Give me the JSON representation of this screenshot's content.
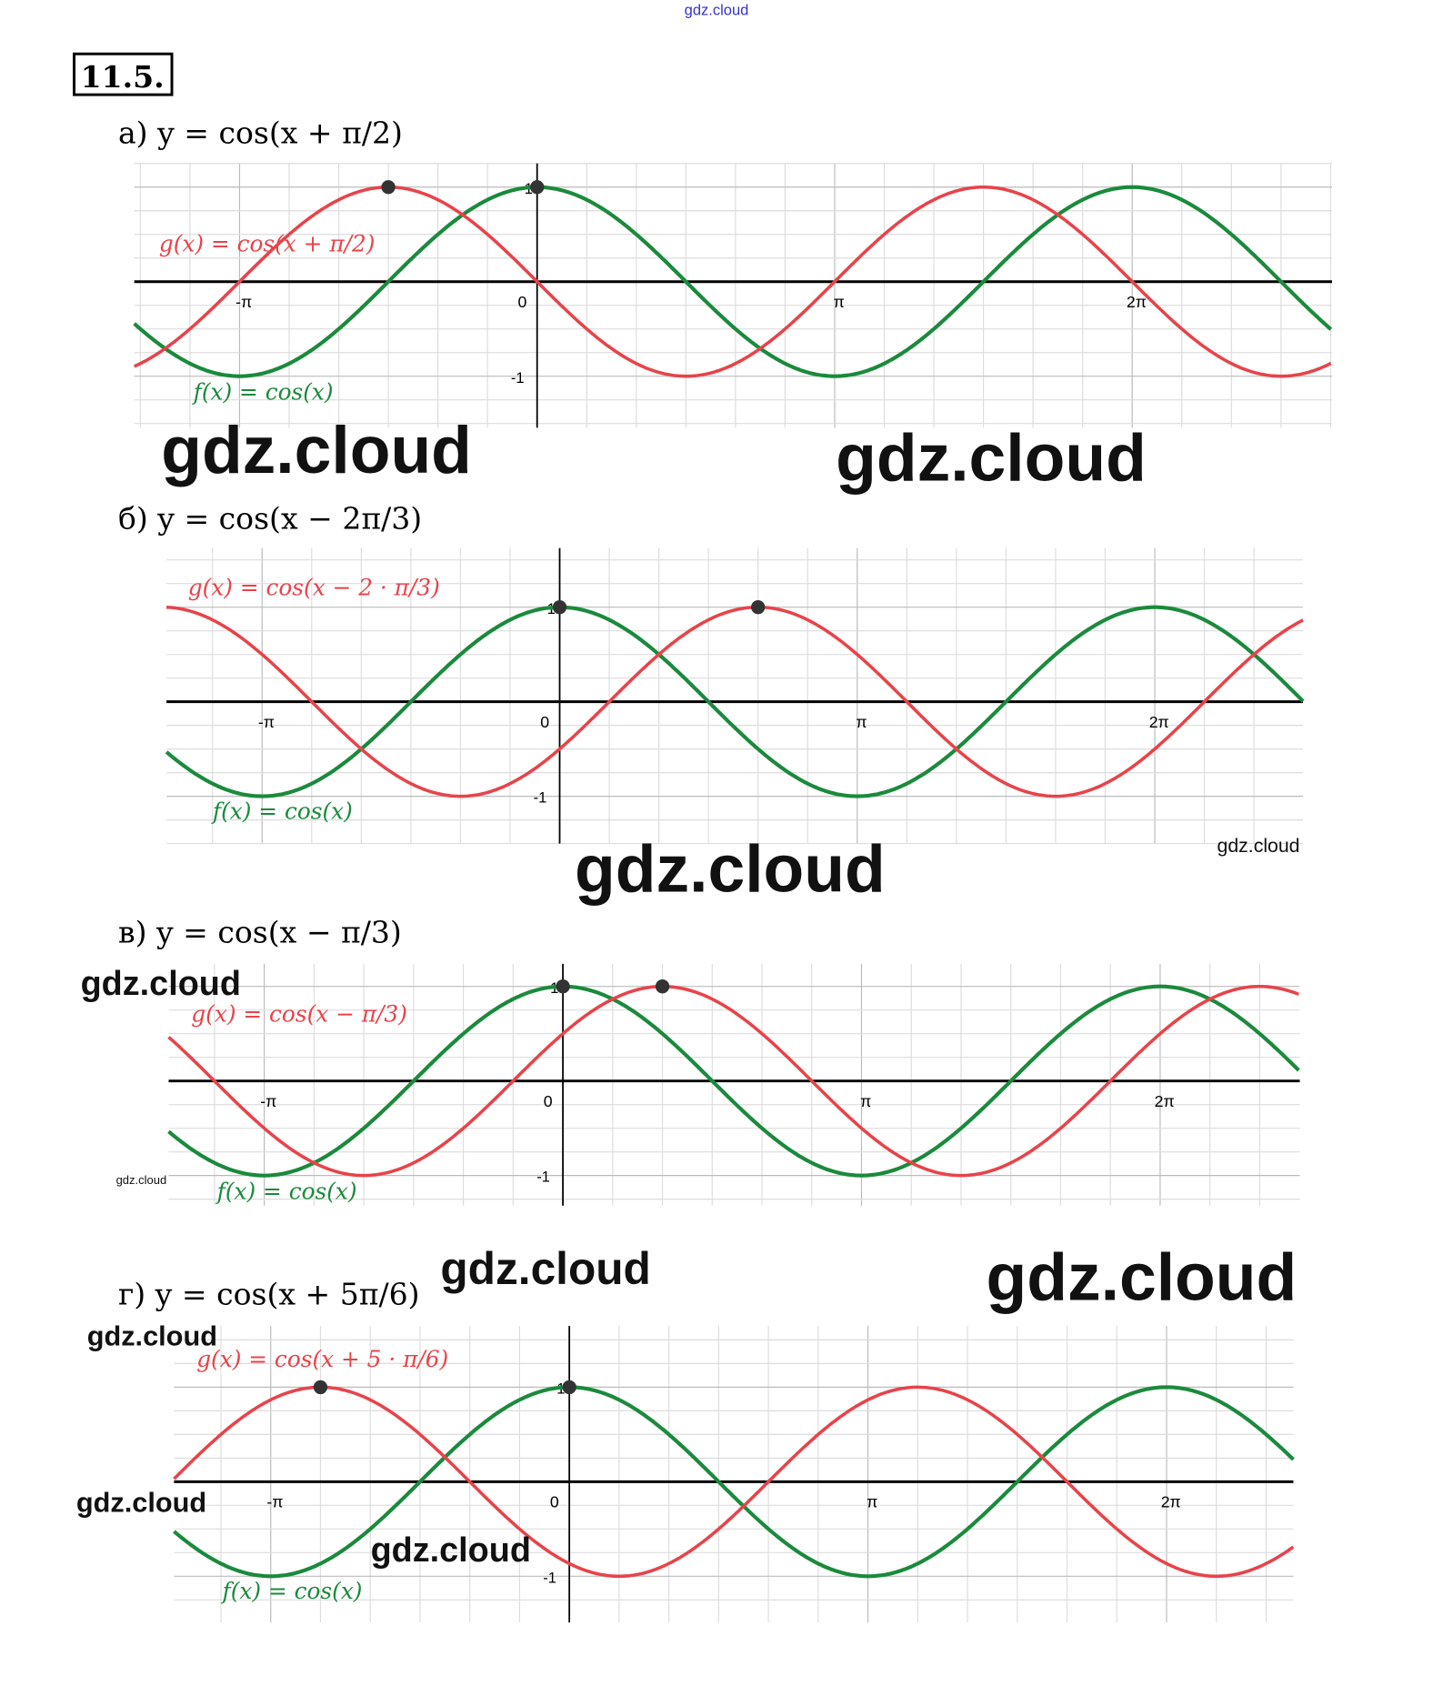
{
  "header": {
    "top_watermark": "gdz.cloud",
    "problem_number": "11.5."
  },
  "colors": {
    "f": "#1a8a3c",
    "g": "#e8434a",
    "grid": "#dddddd",
    "axis": "#000000",
    "point": "#333333",
    "watermark_top": "#3333cc"
  },
  "watermarks": [
    "gdz.cloud",
    "gdz.cloud",
    "gdz.cloud",
    "gdz.cloud",
    "gdz.cloud",
    "gdz.cloud",
    "gdz.cloud",
    "gdz.cloud",
    "gdz.cloud",
    "gdz.cloud",
    "gdz.cloud"
  ],
  "chart_data": [
    {
      "type": "line",
      "label": "а)",
      "title_equation": "y = cos(x + π/2)",
      "g_label": "g(x) = cos(x + π/2)",
      "f_label": "f(x) = cos(x)",
      "shift": -1.5708,
      "x_ticks": [
        "-π",
        "0",
        "π",
        "2π"
      ],
      "y_ticks": [
        "1",
        "-1"
      ],
      "xlim_pi": [
        -1.354,
        2.671
      ],
      "ylim": [
        -1.3,
        1.2
      ],
      "points": [
        [
          -1.5708,
          1
        ],
        [
          0,
          1
        ]
      ],
      "grid": true,
      "series": [
        {
          "name": "f(x) = cos(x)",
          "expr": "cos(x)"
        },
        {
          "name": "g(x) = cos(x + π/2)",
          "expr": "cos(x + π/2)"
        }
      ]
    },
    {
      "type": "line",
      "label": "б)",
      "title_equation": "y = cos(x − 2π/3)",
      "g_label": "g(x) = cos(x − 2 · π/3)",
      "f_label": "f(x) = cos(x)",
      "shift": 2.0944,
      "x_ticks": [
        "-π",
        "0",
        "π",
        "2π"
      ],
      "y_ticks": [
        "1",
        "-1"
      ],
      "xlim_pi": [
        -1.321,
        2.498
      ],
      "ylim": [
        -1.5,
        1.6
      ],
      "points": [
        [
          0,
          1
        ],
        [
          2.0944,
          1
        ]
      ],
      "grid": true,
      "series": [
        {
          "name": "f(x) = cos(x)",
          "expr": "cos(x)"
        },
        {
          "name": "g(x) = cos(x − 2·π/3)",
          "expr": "cos(x − 2π/3)"
        }
      ]
    },
    {
      "type": "line",
      "label": "в)",
      "title_equation": "y = cos(x − π/3)",
      "g_label": "g(x) = cos(x − π/3)",
      "f_label": "f(x) = cos(x)",
      "shift": 1.0472,
      "x_ticks": [
        "-π",
        "0",
        "π",
        "2π"
      ],
      "y_ticks": [
        "1",
        "-1"
      ],
      "xlim_pi": [
        -1.32,
        2.468
      ],
      "ylim": [
        -1.3,
        1.2
      ],
      "points": [
        [
          0,
          1
        ],
        [
          1.0472,
          1
        ]
      ],
      "grid": true,
      "series": [
        {
          "name": "f(x) = cos(x)",
          "expr": "cos(x)"
        },
        {
          "name": "g(x) = cos(x − π/3)",
          "expr": "cos(x − π/3)"
        }
      ]
    },
    {
      "type": "line",
      "label": "г)",
      "title_equation": "y = cos(x + 5π/6)",
      "g_label": "g(x) = cos(x + 5 · π/6)",
      "f_label": "f(x) = cos(x)",
      "shift": -2.618,
      "x_ticks": [
        "-π",
        "0",
        "π",
        "2π"
      ],
      "y_ticks": [
        "1",
        "-1"
      ],
      "xlim_pi": [
        -1.324,
        2.424
      ],
      "ylim": [
        -1.5,
        1.6
      ],
      "points": [
        [
          -2.618,
          1
        ],
        [
          0,
          1
        ]
      ],
      "grid": true,
      "series": [
        {
          "name": "f(x) = cos(x)",
          "expr": "cos(x)"
        },
        {
          "name": "g(x) = cos(x + 5·π/6)",
          "expr": "cos(x + 5π/6)"
        }
      ]
    }
  ]
}
